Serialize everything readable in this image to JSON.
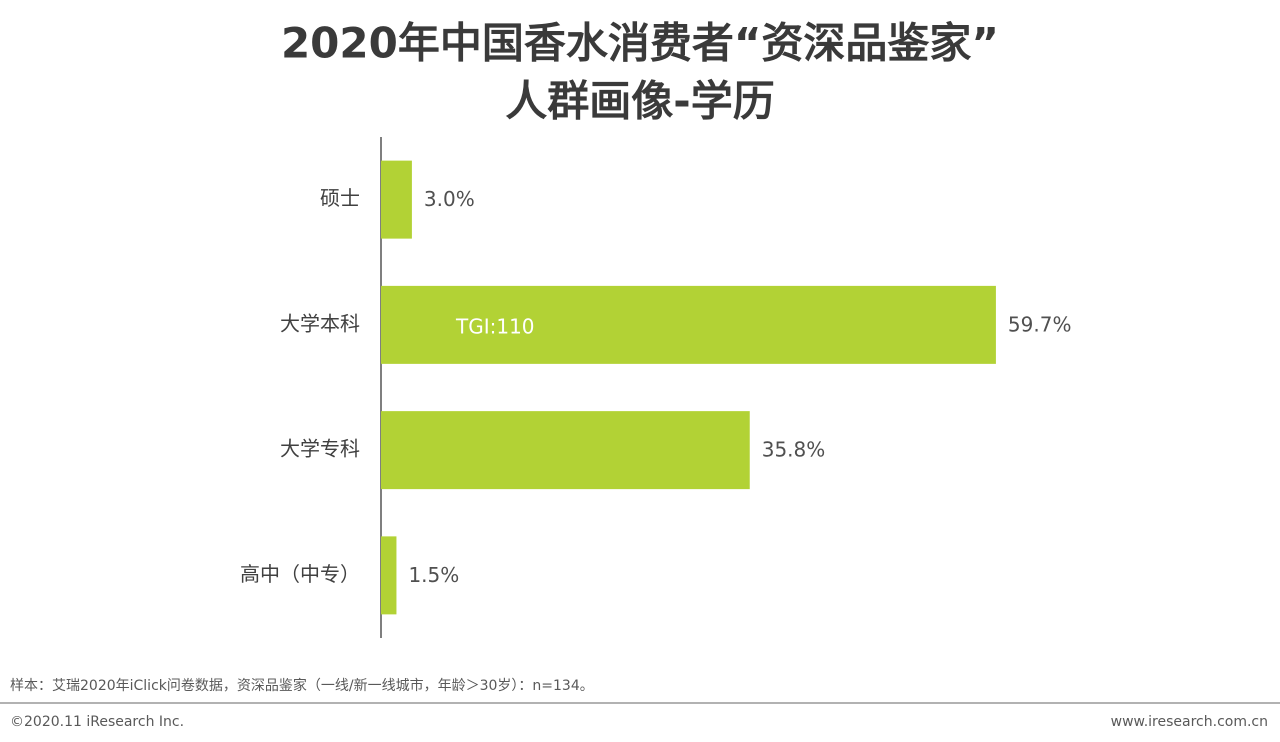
{
  "chart_data": {
    "type": "bar",
    "orientation": "horizontal",
    "title": [
      "2020年中国香水消费者“资深品鉴家”",
      "人群画像-学历"
    ],
    "categories": [
      "硕士",
      "大学本科",
      "大学专科",
      "高中（中专）"
    ],
    "values": [
      3.0,
      59.7,
      35.8,
      1.5
    ],
    "value_labels": [
      "3.0%",
      "59.7%",
      "35.8%",
      "1.5%"
    ],
    "color": "#b2d235",
    "annotation": "TGI:110"
  },
  "footer": {
    "note": "样本：艾瑞2020年iClick问卷数据，资深品鉴家（一线/新一线城市，年龄＞30岁）：n=134。",
    "copyright": "©2020.11 iResearch Inc.",
    "website": "www.iresearch.com.cn"
  }
}
